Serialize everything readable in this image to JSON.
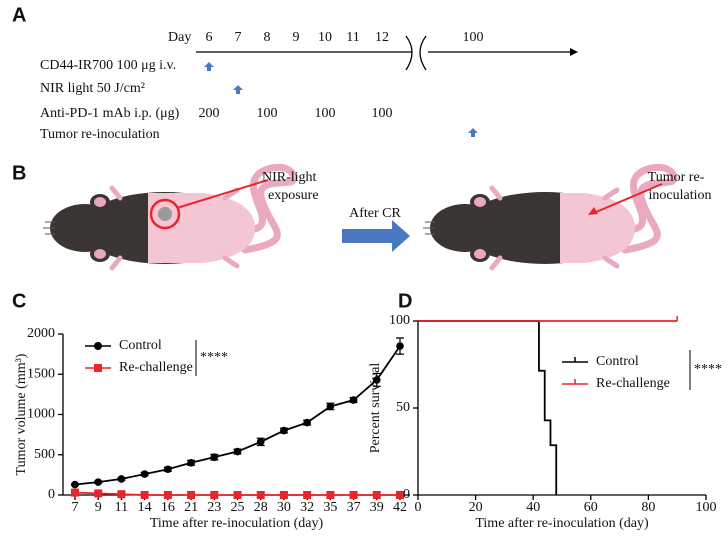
{
  "panel_a": {
    "label": "A",
    "day_label": "Day",
    "days": [
      "6",
      "7",
      "8",
      "9",
      "10",
      "11",
      "12",
      "100"
    ],
    "rows": [
      "CD44-IR700 100 μg i.v.",
      "NIR light 50 J/cm²",
      "Anti-PD-1 mAb i.p. (μg)",
      "Tumor re-inoculation"
    ],
    "doses": [
      "200",
      "100",
      "100",
      "100"
    ]
  },
  "panel_b": {
    "label": "B",
    "left_note": [
      "NIR-light",
      "exposure"
    ],
    "arrow_label": "After CR",
    "right_note": [
      "Tumor re-",
      "inoculation"
    ]
  },
  "chart_data": [
    {
      "type": "line",
      "panel_label": "C",
      "x_label": "Time after re-inoculation (day)",
      "y_label": "Tumor volume (mm³)",
      "categories": [
        "7",
        "9",
        "11",
        "14",
        "16",
        "21",
        "23",
        "25",
        "28",
        "30",
        "32",
        "35",
        "37",
        "39",
        "42"
      ],
      "ylim": [
        0,
        2000
      ],
      "yticks": [
        0,
        500,
        1000,
        1500,
        2000
      ],
      "annotation": "****",
      "series": [
        {
          "name": "Control",
          "color": "#000000",
          "marker": "circle",
          "values": [
            130,
            160,
            200,
            260,
            320,
            400,
            470,
            540,
            660,
            800,
            900,
            1100,
            1180,
            1430,
            1850
          ],
          "error": [
            10,
            15,
            15,
            20,
            25,
            30,
            35,
            30,
            45,
            30,
            30,
            40,
            30,
            80,
            100
          ]
        },
        {
          "name": "Re-challenge",
          "color": "#e8262a",
          "marker": "square",
          "values": [
            30,
            20,
            10,
            0,
            0,
            0,
            0,
            0,
            0,
            0,
            0,
            0,
            0,
            0,
            0
          ]
        }
      ]
    },
    {
      "type": "step",
      "panel_label": "D",
      "x_label": "Time after re-inoculation (day)",
      "y_label": "Percent survival",
      "xlim": [
        0,
        100
      ],
      "xticks": [
        0,
        20,
        40,
        60,
        80,
        100
      ],
      "ylim": [
        0,
        100
      ],
      "yticks": [
        0,
        50,
        100
      ],
      "annotation": "****",
      "series": [
        {
          "name": "Control",
          "color": "#000000",
          "x": [
            0,
            42,
            44,
            46,
            48
          ],
          "values": [
            100,
            71.4,
            42.9,
            28.6,
            0
          ]
        },
        {
          "name": "Re-challenge",
          "color": "#e8262a",
          "x": [
            0,
            90
          ],
          "values": [
            100,
            100
          ]
        }
      ]
    }
  ]
}
